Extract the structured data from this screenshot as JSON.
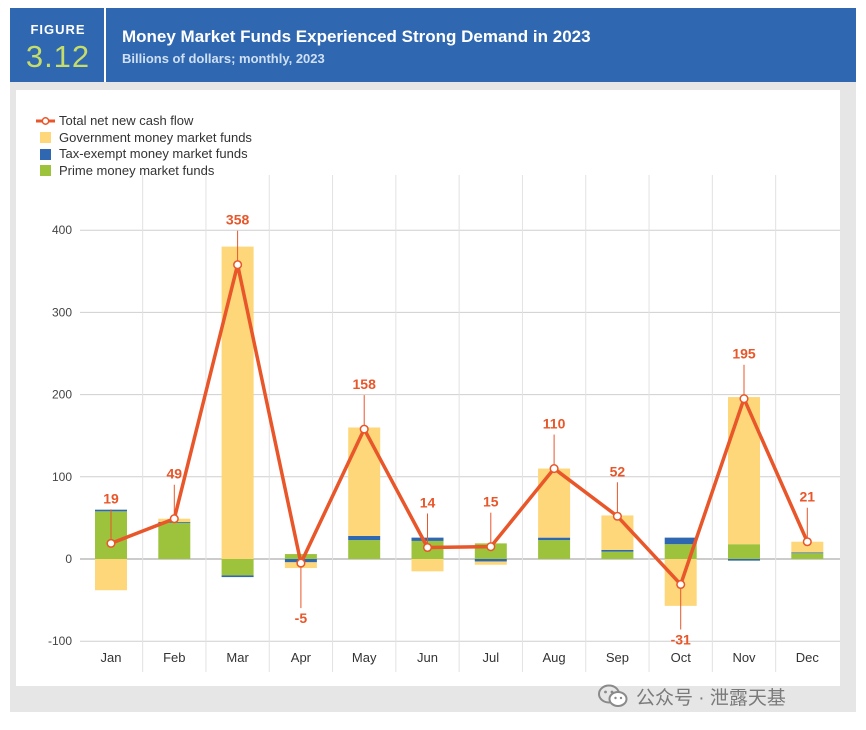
{
  "header": {
    "figure_label": "FIGURE",
    "figure_number": "3.12",
    "title": "Money Market Funds Experienced Strong Demand in 2023",
    "subtitle": "Billions of dollars; monthly, 2023"
  },
  "legend": {
    "total": "Total net new cash flow",
    "government": "Government money market funds",
    "tax_exempt": "Tax-exempt money market funds",
    "prime": "Prime money market funds"
  },
  "colors": {
    "header_bg": "#2f67b1",
    "figure_number": "#c6dd6a",
    "government": "#fdd77a",
    "tax_exempt": "#2f67b1",
    "prime": "#9cc33b",
    "total_line": "#e8562a"
  },
  "chart_data": {
    "type": "bar",
    "stacked": true,
    "title": "Money Market Funds Experienced Strong Demand in 2023",
    "subtitle": "Billions of dollars; monthly, 2023",
    "xlabel": "",
    "ylabel": "",
    "ylim": [
      -100,
      400
    ],
    "yticks": [
      -100,
      0,
      100,
      200,
      300,
      400
    ],
    "grid": true,
    "legend_position": "top-left",
    "categories": [
      "Jan",
      "Feb",
      "Mar",
      "Apr",
      "May",
      "Jun",
      "Jul",
      "Aug",
      "Sep",
      "Oct",
      "Nov",
      "Dec"
    ],
    "series": [
      {
        "name": "Prime money market funds",
        "type": "bar",
        "values": [
          58,
          44,
          -20,
          6,
          23,
          22,
          19,
          23,
          9,
          18,
          18,
          7
        ]
      },
      {
        "name": "Tax-exempt money market funds",
        "type": "bar",
        "values": [
          2,
          1,
          -2,
          -4,
          5,
          4,
          -3,
          3,
          2,
          8,
          -2,
          1
        ]
      },
      {
        "name": "Government money market funds",
        "type": "bar",
        "values": [
          -38,
          4,
          380,
          -7,
          132,
          -15,
          -4,
          84,
          42,
          -57,
          179,
          13
        ]
      },
      {
        "name": "Total net new cash flow",
        "type": "line",
        "values": [
          19,
          49,
          358,
          -5,
          158,
          14,
          15,
          110,
          52,
          -31,
          195,
          21
        ]
      }
    ],
    "data_labels": [
      "19",
      "49",
      "358",
      "-5",
      "158",
      "14",
      "15",
      "110",
      "52",
      "-31",
      "195",
      "21"
    ]
  },
  "watermark": {
    "text": "公众号 · 泄露天基"
  }
}
